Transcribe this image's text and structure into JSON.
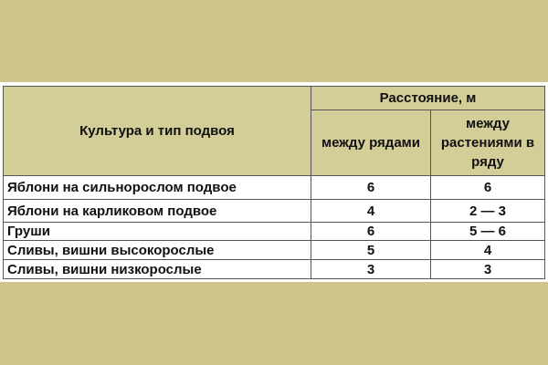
{
  "table": {
    "header": {
      "crop_col": "Культура и тип подвоя",
      "distance_group": "Расстояние, м",
      "between_rows": "между рядами",
      "between_plants": "между растениями в ряду"
    },
    "rows": [
      {
        "crop": "Яблони на сильнорослом подвое",
        "rows": "6",
        "plants": "6"
      },
      {
        "crop": "Яблони на карликовом подвое",
        "rows": "4",
        "plants": "2 — 3"
      },
      {
        "crop": "Груши",
        "rows": "6",
        "plants": "5 — 6"
      },
      {
        "crop": "Сливы, вишни высокорослые",
        "rows": "5",
        "plants": "4"
      },
      {
        "crop": "Сливы, вишни низкорослые",
        "rows": "3",
        "plants": "3"
      }
    ]
  },
  "colors": {
    "background": "#cfc58c",
    "header": "#d3cd98",
    "border": "#555555"
  }
}
